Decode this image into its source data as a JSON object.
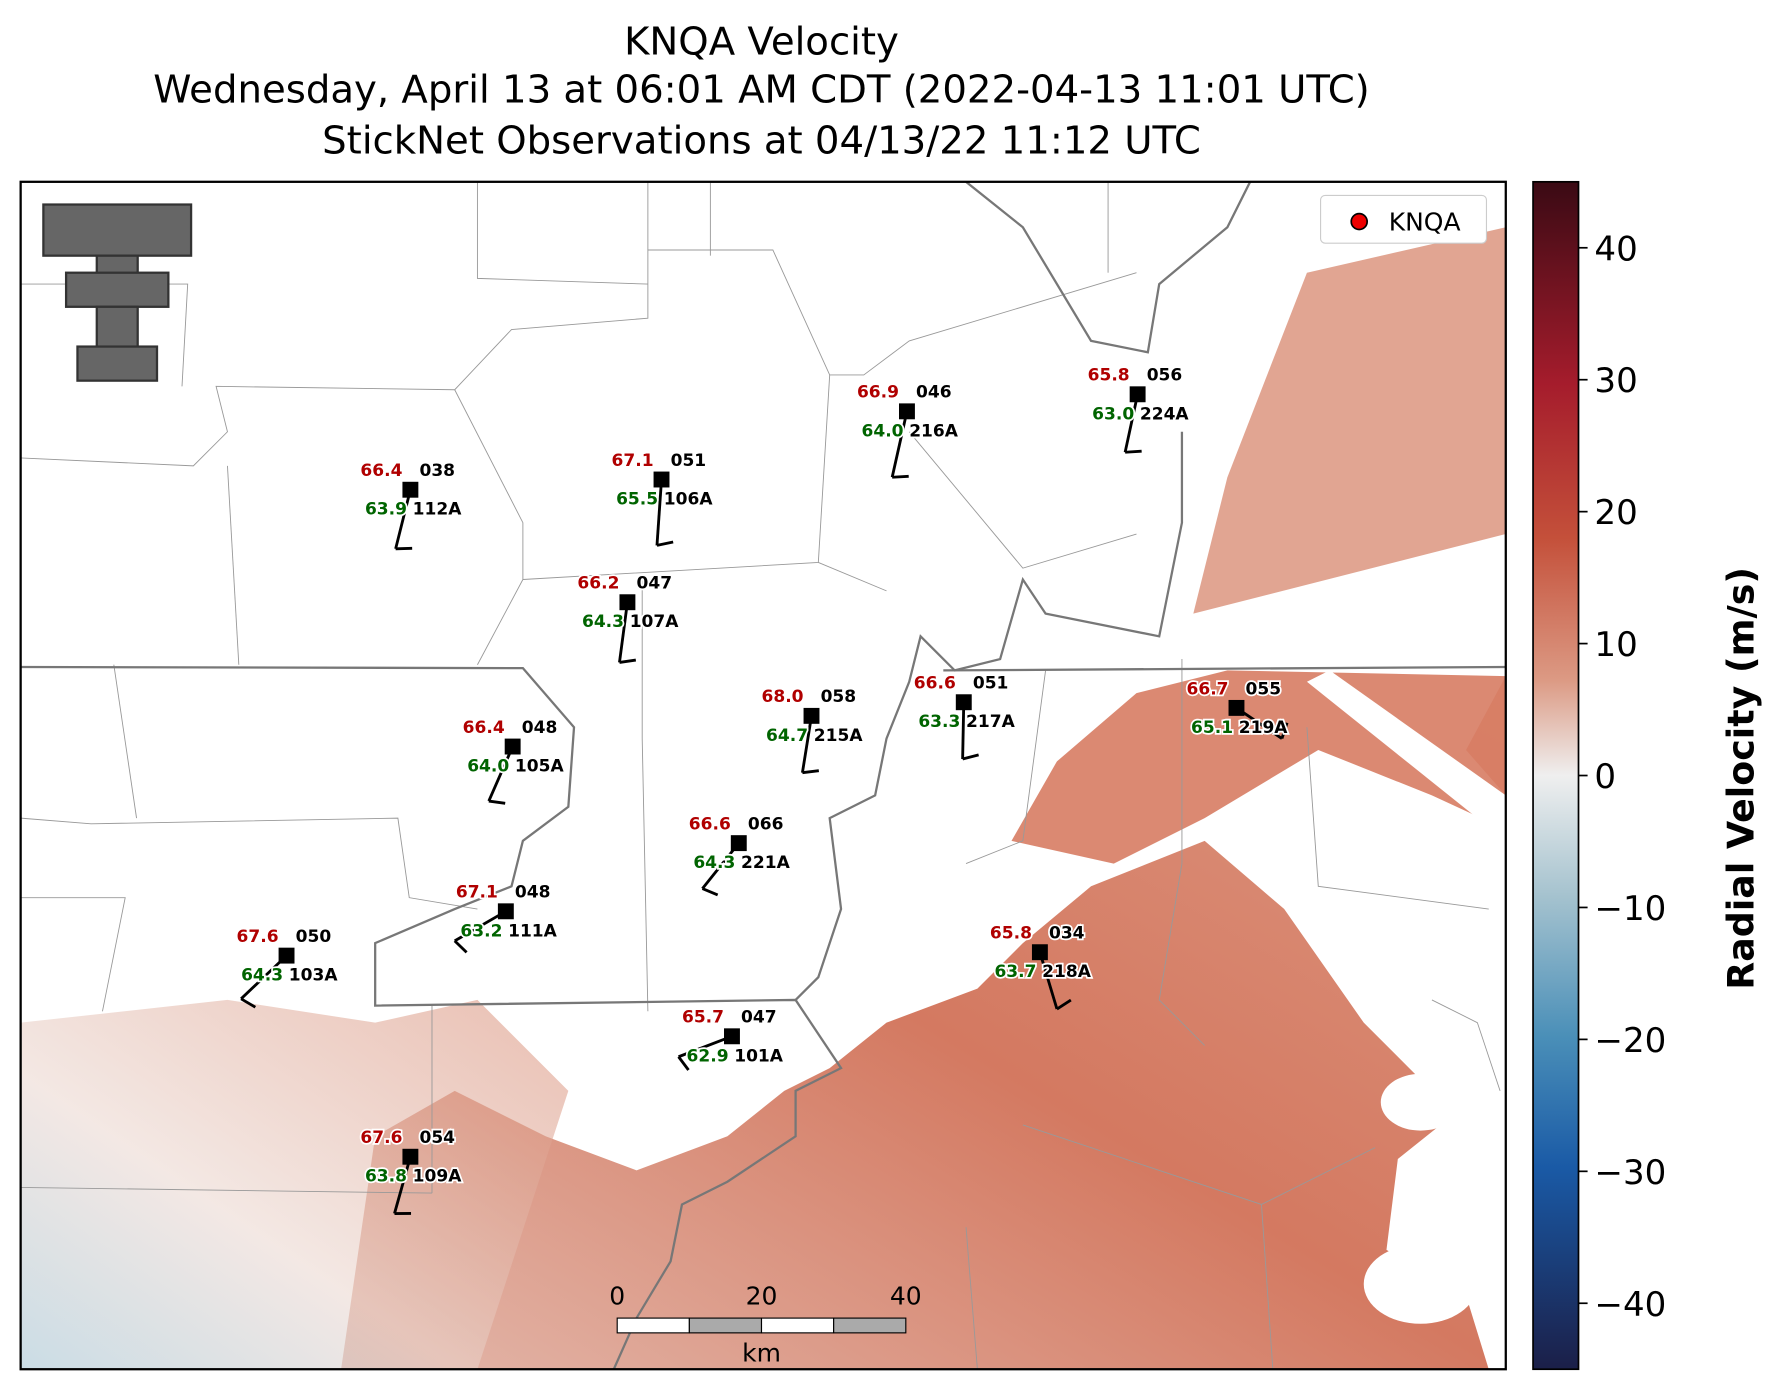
{
  "title_lines": [
    "KNQA Velocity",
    "Wednesday, April 13 at 06:01 AM CDT (2022-04-13 11:01 UTC)",
    "StickNet Observations at 04/13/22 11:12 UTC"
  ],
  "legend": "KNQA",
  "colorbar": {
    "label": "Radial Velocity (m/s)",
    "lim": [
      -45,
      45
    ],
    "ticks": [
      {
        "value": -40,
        "label": "−40"
      },
      {
        "value": -30,
        "label": "−30"
      },
      {
        "value": -20,
        "label": "−20"
      },
      {
        "value": -10,
        "label": "−10"
      },
      0,
      10,
      20,
      30,
      40
    ]
  },
  "scale_bar": {
    "ticks": [
      0,
      20,
      40
    ],
    "unit": "km"
  },
  "stations": [
    {
      "temperature": "66.4",
      "top": "038",
      "dewpoint": "63.9",
      "id": "112A"
    },
    {
      "temperature": "67.1",
      "top": "051",
      "dewpoint": "65.5",
      "id": "106A"
    },
    {
      "temperature": "66.9",
      "top": "046",
      "dewpoint": "64.0",
      "id": "216A"
    },
    {
      "temperature": "65.8",
      "top": "056",
      "dewpoint": "63.0",
      "id": "224A"
    },
    {
      "temperature": "66.2",
      "top": "047",
      "dewpoint": "64.3",
      "id": "107A"
    },
    {
      "temperature": "68.0",
      "top": "058",
      "dewpoint": "64.7",
      "id": "215A"
    },
    {
      "temperature": "66.6",
      "top": "051",
      "dewpoint": "63.3",
      "id": "217A"
    },
    {
      "temperature": "66.7",
      "top": "055",
      "dewpoint": "65.1",
      "id": "219A"
    },
    {
      "temperature": "66.4",
      "top": "048",
      "dewpoint": "64.0",
      "id": "105A"
    },
    {
      "temperature": "66.6",
      "top": "066",
      "dewpoint": "64.3",
      "id": "221A"
    },
    {
      "temperature": "67.1",
      "top": "048",
      "dewpoint": "63.2",
      "id": "111A"
    },
    {
      "temperature": "67.6",
      "top": "050",
      "dewpoint": "64.3",
      "id": "103A"
    },
    {
      "temperature": "65.8",
      "top": "034",
      "dewpoint": "63.7",
      "id": "218A"
    },
    {
      "temperature": "65.7",
      "top": "047",
      "dewpoint": "62.9",
      "id": "101A"
    },
    {
      "temperature": "67.6",
      "top": "054",
      "dewpoint": "63.8",
      "id": "109A"
    }
  ]
}
